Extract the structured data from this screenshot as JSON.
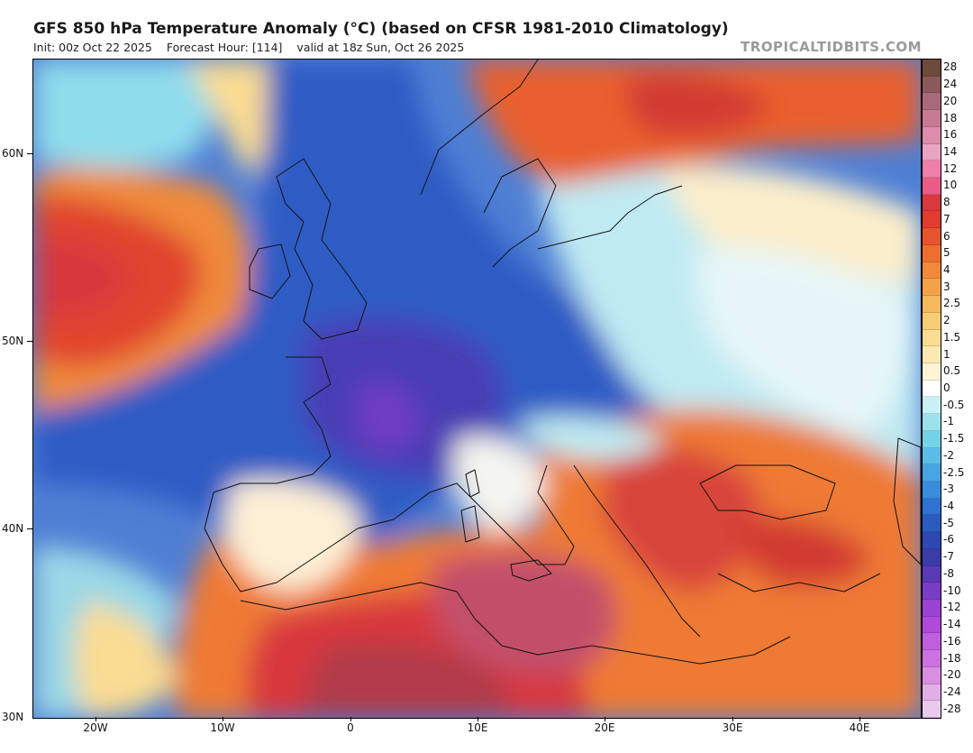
{
  "header": {
    "title": "GFS 850 hPa Temperature Anomaly (°C) (based on CFSR 1981-2010 Climatology)",
    "init": "Init: 00z Oct 22 2025",
    "forecast_hour": "Forecast Hour: [114]",
    "valid": "valid at 18z Sun, Oct 26 2025",
    "brand": "TROPICALTIDBITS.COM"
  },
  "axes": {
    "lat_labels": [
      "60N",
      "50N",
      "40N",
      "30N"
    ],
    "lon_labels": [
      "20W",
      "10W",
      "0",
      "10E",
      "20E",
      "30E",
      "40E"
    ]
  },
  "colorbar": {
    "labels": [
      "28",
      "24",
      "20",
      "18",
      "16",
      "14",
      "12",
      "10",
      "8",
      "7",
      "6",
      "5",
      "4",
      "3",
      "2.5",
      "2",
      "1.5",
      "1",
      "0.5",
      "0",
      "-0.5",
      "-1",
      "-1.5",
      "-2",
      "-2.5",
      "-3",
      "-4",
      "-5",
      "-6",
      "-7",
      "-8",
      "-10",
      "-12",
      "-14",
      "-16",
      "-18",
      "-20",
      "-24",
      "-28"
    ],
    "colors": [
      "#6e4a3c",
      "#8a5a5a",
      "#a86a7a",
      "#c77a94",
      "#dc8cac",
      "#e9a4c4",
      "#ef7fa8",
      "#ea5c86",
      "#d8383e",
      "#e23b2f",
      "#e5542c",
      "#ec6f2f",
      "#f2883a",
      "#f4a24a",
      "#f6b85d",
      "#f8cc77",
      "#fadc93",
      "#fce8b2",
      "#fdf4d6",
      "#ffffff",
      "#c9f0f4",
      "#9ae2ec",
      "#73d2e8",
      "#5cbce6",
      "#48a4e2",
      "#3a8cdc",
      "#2f72cf",
      "#2a5cc0",
      "#2d48b0",
      "#3c3ca8",
      "#5a3ab4",
      "#7a3cc4",
      "#9a42d2",
      "#b04ad8",
      "#c05ede",
      "#cc72e0",
      "#d98ee2",
      "#e2aee6",
      "#eacaec"
    ]
  }
}
